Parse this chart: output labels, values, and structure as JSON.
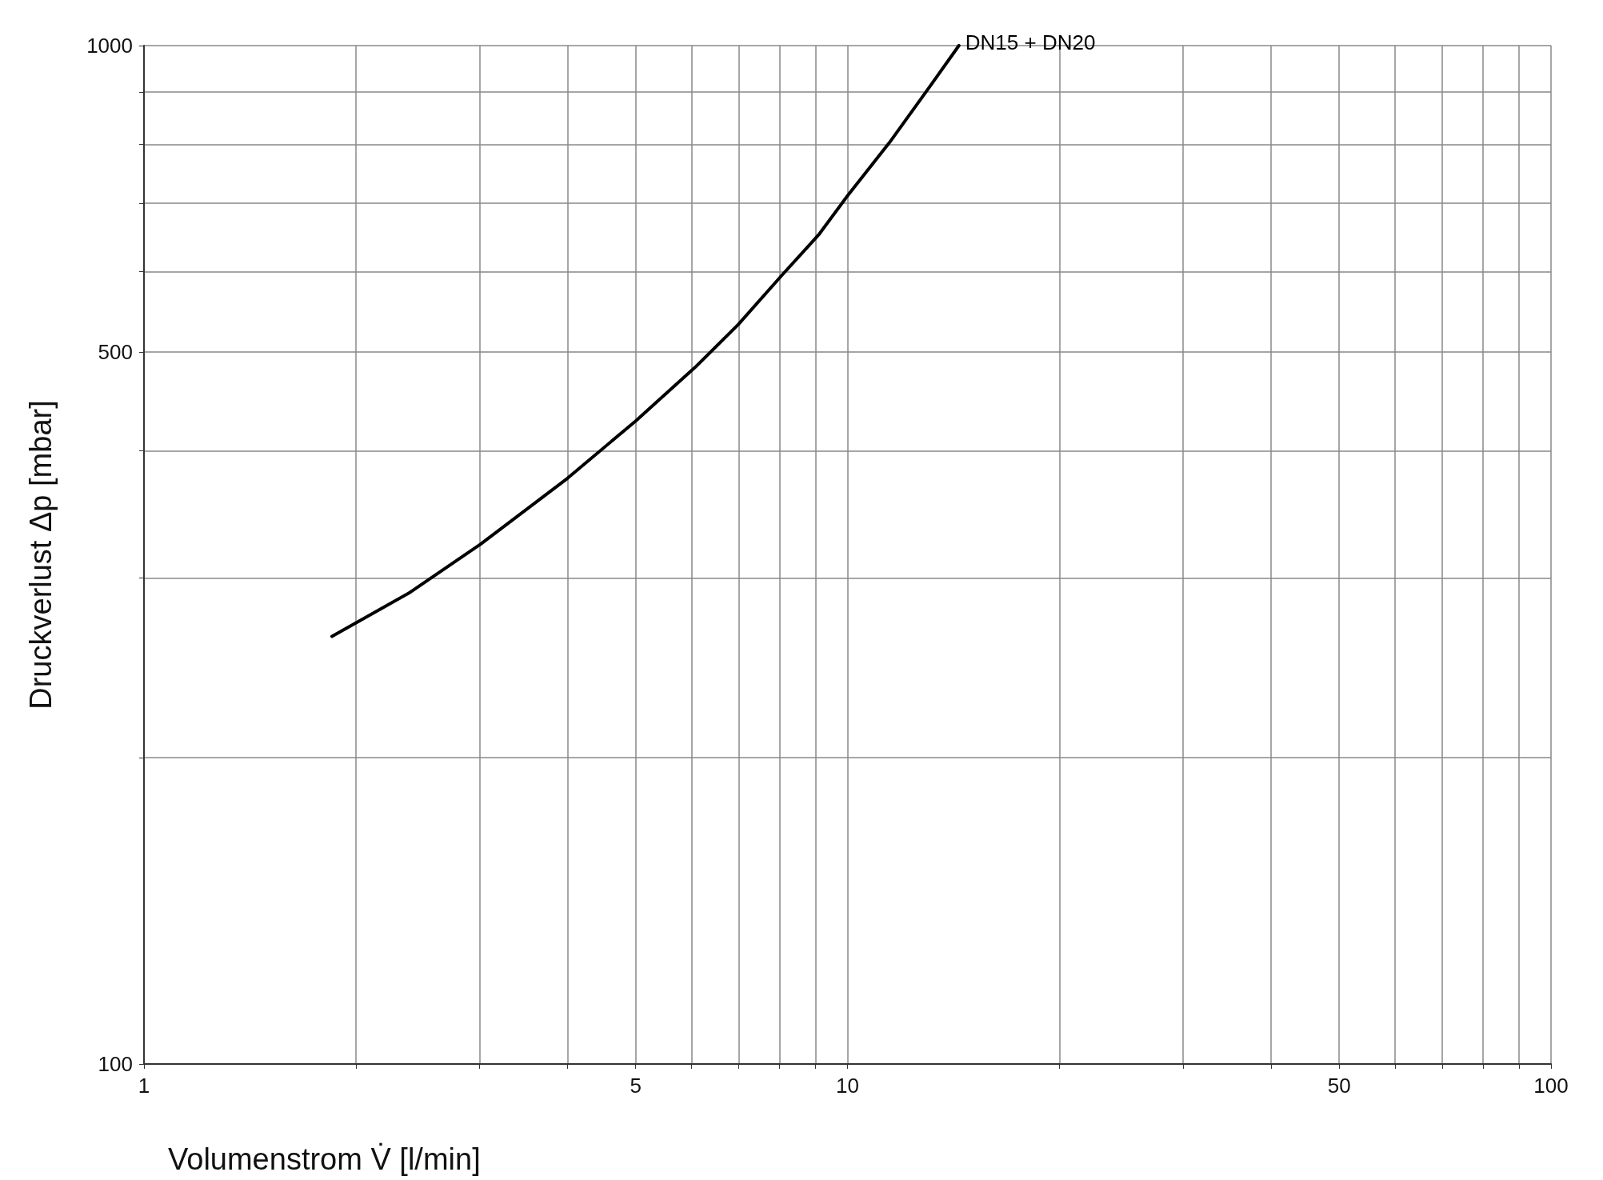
{
  "chart_data": {
    "type": "line",
    "xlabel": "Volumenstrom V̇ [l/min]",
    "ylabel": "Druckverlust Δp [mbar]",
    "log": "xy",
    "grid": true,
    "legend": false,
    "marker": "none",
    "line_style": "solid",
    "xlim": [
      1,
      100
    ],
    "ylim": [
      100,
      1000
    ],
    "xticks": [
      1,
      {
        "value": 2,
        "label": null
      },
      {
        "value": 3,
        "label": null
      },
      {
        "value": 4,
        "label": null
      },
      5,
      {
        "value": 6,
        "label": null
      },
      {
        "value": 7,
        "label": null
      },
      {
        "value": 8,
        "label": null
      },
      {
        "value": 9,
        "label": null
      },
      10,
      {
        "value": 20,
        "label": null
      },
      {
        "value": 30,
        "label": null
      },
      {
        "value": 40,
        "label": null
      },
      50,
      {
        "value": 60,
        "label": null
      },
      {
        "value": 70,
        "label": null
      },
      {
        "value": 80,
        "label": null
      },
      {
        "value": 90,
        "label": null
      },
      100
    ],
    "yticks": [
      100,
      {
        "value": 200,
        "label": null
      },
      {
        "value": 300,
        "label": null
      },
      {
        "value": 400,
        "label": null
      },
      500,
      {
        "value": 600,
        "label": null
      },
      {
        "value": 700,
        "label": null
      },
      {
        "value": 800,
        "label": null
      },
      {
        "value": 900,
        "label": null
      },
      1000
    ],
    "series": [
      {
        "name": "DN15 + DN20",
        "color": "#000000",
        "x": [
          1.85,
          2.38,
          3.01,
          4.0,
          5.0,
          6.07,
          6.99,
          8.05,
          9.1,
          10.0,
          11.47,
          13.1,
          14.4
        ],
        "values": [
          263,
          290,
          324,
          376,
          428,
          483,
          532,
          594,
          652,
          712,
          803,
          912,
          1000
        ]
      }
    ]
  }
}
